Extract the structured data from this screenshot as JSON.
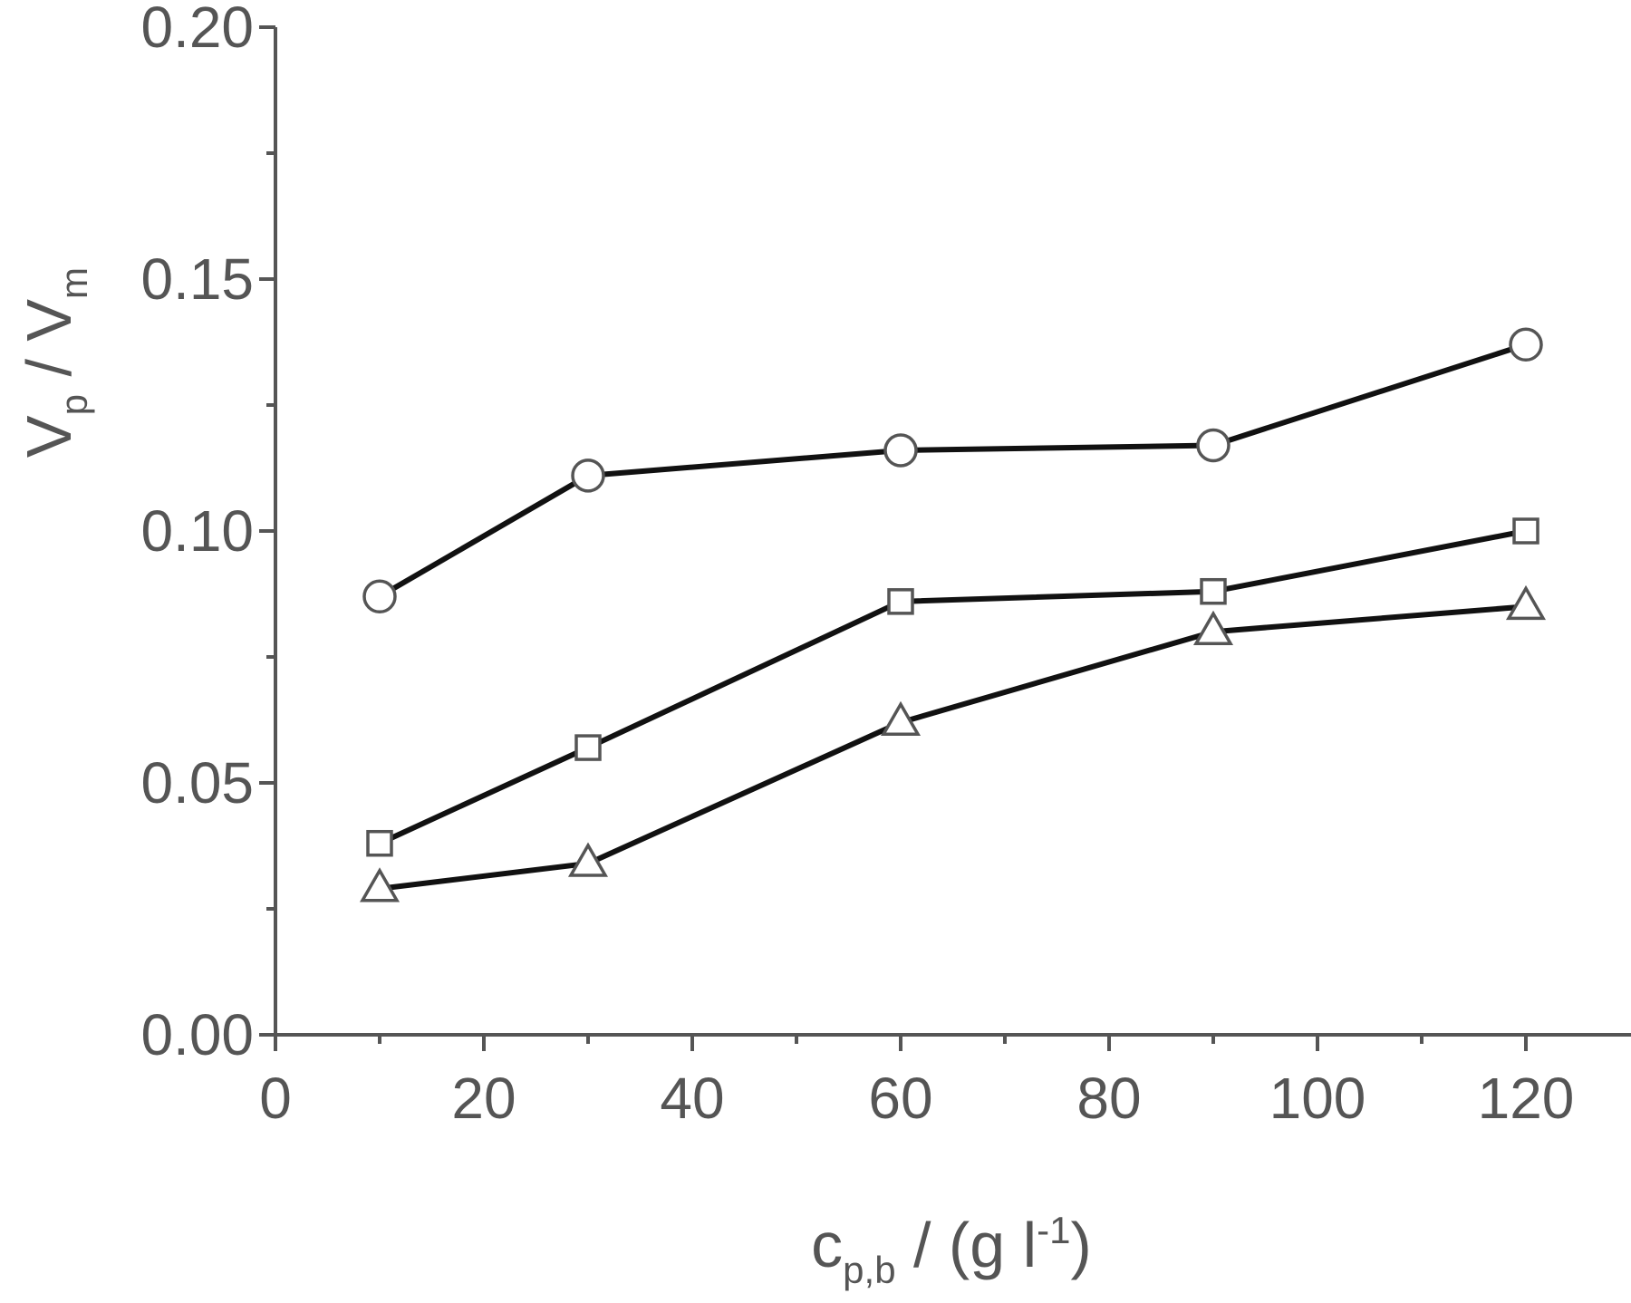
{
  "chart_data": {
    "type": "line",
    "title": "",
    "x": [
      10,
      30,
      60,
      90,
      120
    ],
    "xlim": [
      0,
      130
    ],
    "ylim": [
      0,
      0.2
    ],
    "xticks": [
      "0",
      "20",
      "40",
      "60",
      "80",
      "100",
      "120"
    ],
    "yticks": [
      "0.00",
      "0.05",
      "0.10",
      "0.15",
      "0.20"
    ],
    "xlabel": {
      "main": "c",
      "sub": "p,b",
      "rest": " / (g l",
      "sup": "-1",
      "end": ")"
    },
    "ylabel": {
      "v1": "V",
      "s1": "p",
      "slash": " / ",
      "v2": "V",
      "s2": "m"
    },
    "grid": false,
    "legend": "none",
    "series": [
      {
        "marker": "circle",
        "values": [
          0.087,
          0.111,
          0.116,
          0.117,
          0.137
        ]
      },
      {
        "marker": "square",
        "values": [
          0.038,
          0.057,
          0.086,
          0.088,
          0.1
        ]
      },
      {
        "marker": "triangle",
        "values": [
          0.029,
          0.034,
          0.062,
          0.08,
          0.085
        ]
      }
    ]
  }
}
